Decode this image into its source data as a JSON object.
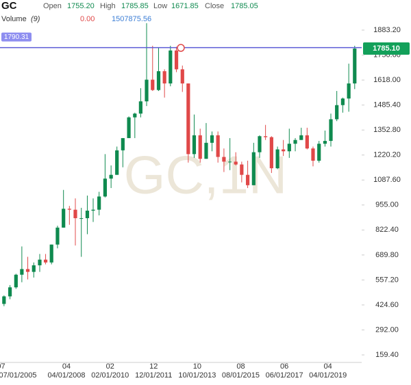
{
  "chart_data": {
    "type": "candlestick",
    "header": {
      "symbol": "GC",
      "open_label": "Open",
      "open": "1755.20",
      "high_label": "High",
      "high": "1785.85",
      "low_label": "Low",
      "low": "1671.85",
      "close_label": "Close",
      "close": "1785.05",
      "volume_label": "Volume",
      "volume_period": "(9)",
      "volume_a": "0.00",
      "volume_b": "1507875.56"
    },
    "watermark": "GC,1N",
    "up_color": "#0f8a4f",
    "down_color": "#e04848",
    "x": [
      "2005-07-01",
      "2005-10-01",
      "2006-01-01",
      "2006-04-01",
      "2006-07-01",
      "2006-10-01",
      "2007-01-01",
      "2007-04-01",
      "2007-07-01",
      "2007-10-01",
      "2008-01-01",
      "2008-04-01",
      "2008-07-01",
      "2008-10-01",
      "2009-01-01",
      "2009-04-01",
      "2009-07-01",
      "2009-10-01",
      "2010-01-01",
      "2010-04-01",
      "2010-07-01",
      "2010-10-01",
      "2011-01-01",
      "2011-04-01",
      "2011-07-01",
      "2011-10-01",
      "2012-01-01",
      "2012-04-01",
      "2012-07-01",
      "2012-10-01",
      "2013-01-01",
      "2013-04-01",
      "2013-07-01",
      "2013-10-01",
      "2014-01-01",
      "2014-04-01",
      "2014-07-01",
      "2014-10-01",
      "2015-01-01",
      "2015-04-01",
      "2015-07-01",
      "2015-10-01",
      "2016-01-01",
      "2016-04-01",
      "2016-07-01",
      "2016-10-01",
      "2017-01-01",
      "2017-04-01",
      "2017-07-01",
      "2017-10-01",
      "2018-01-01",
      "2018-04-01",
      "2018-07-01",
      "2018-10-01",
      "2019-01-01",
      "2019-04-01",
      "2019-07-01",
      "2019-10-01",
      "2020-01-01",
      "2020-04-01"
    ],
    "open": [
      430,
      470,
      518,
      585,
      615,
      600,
      635,
      665,
      650,
      745,
      835,
      935,
      930,
      885,
      885,
      925,
      930,
      1000,
      1095,
      1115,
      1245,
      1310,
      1420,
      1440,
      1505,
      1620,
      1565,
      1665,
      1600,
      1775,
      1675,
      1600,
      1225,
      1325,
      1200,
      1285,
      1325,
      1210,
      1185,
      1185,
      1170,
      1115,
      1060,
      1235,
      1320,
      1315,
      1150,
      1250,
      1240,
      1280,
      1300,
      1325,
      1255,
      1190,
      1280,
      1295,
      1410,
      1485,
      1520,
      1600
    ],
    "high": [
      475,
      530,
      590,
      735,
      680,
      650,
      695,
      695,
      745,
      845,
      1035,
      950,
      990,
      940,
      1005,
      990,
      1025,
      1225,
      1165,
      1265,
      1310,
      1425,
      1445,
      1575,
      1920,
      1800,
      1790,
      1675,
      1800,
      1795,
      1695,
      1600,
      1435,
      1360,
      1390,
      1345,
      1345,
      1255,
      1310,
      1235,
      1185,
      1190,
      1285,
      1325,
      1380,
      1320,
      1265,
      1300,
      1360,
      1310,
      1365,
      1365,
      1265,
      1295,
      1350,
      1440,
      1560,
      1525,
      1705,
      1800
    ],
    "low": [
      418,
      455,
      510,
      545,
      560,
      570,
      600,
      640,
      640,
      725,
      835,
      850,
      740,
      680,
      800,
      865,
      900,
      995,
      1045,
      1115,
      1155,
      1310,
      1310,
      1420,
      1480,
      1560,
      1560,
      1525,
      1585,
      1660,
      1555,
      1180,
      1205,
      1180,
      1200,
      1240,
      1180,
      1130,
      1140,
      1165,
      1075,
      1045,
      1060,
      1205,
      1300,
      1125,
      1145,
      1215,
      1205,
      1240,
      1300,
      1250,
      1160,
      1180,
      1265,
      1265,
      1400,
      1445,
      1450,
      1570
    ],
    "close": [
      470,
      518,
      585,
      615,
      600,
      635,
      665,
      650,
      745,
      835,
      935,
      930,
      885,
      885,
      925,
      930,
      1000,
      1095,
      1115,
      1245,
      1310,
      1420,
      1440,
      1505,
      1620,
      1565,
      1665,
      1600,
      1775,
      1675,
      1600,
      1225,
      1325,
      1200,
      1285,
      1325,
      1210,
      1185,
      1185,
      1170,
      1115,
      1060,
      1235,
      1320,
      1315,
      1150,
      1250,
      1240,
      1280,
      1300,
      1325,
      1255,
      1190,
      1280,
      1295,
      1410,
      1485,
      1520,
      1600,
      1785
    ],
    "ylim": [
      119.5,
      1934
    ],
    "yticks": [
      {
        "value": 159.4,
        "label": "159.40"
      },
      {
        "value": 292,
        "label": "292.00"
      },
      {
        "value": 424.6,
        "label": "424.60"
      },
      {
        "value": 557.2,
        "label": "557.20"
      },
      {
        "value": 689.8,
        "label": "689.80"
      },
      {
        "value": 822.4,
        "label": "822.40"
      },
      {
        "value": 955,
        "label": "955.00"
      },
      {
        "value": 1087.6,
        "label": "1087.60"
      },
      {
        "value": 1220.2,
        "label": "1220.20"
      },
      {
        "value": 1352.8,
        "label": "1352.80"
      },
      {
        "value": 1485.4,
        "label": "1485.40"
      },
      {
        "value": 1618,
        "label": "1618.00"
      },
      {
        "value": 1750.6,
        "label": "1750.60"
      },
      {
        "value": 1883.2,
        "label": "1883.20"
      }
    ],
    "xlim": [
      "2005-06-15",
      "2020-09-01"
    ],
    "xticks": [
      {
        "value": "2005-07-01",
        "label": "07"
      },
      {
        "value": "2008-04-01",
        "label": "04"
      },
      {
        "value": "2010-02-01",
        "label": "02"
      },
      {
        "value": "2011-12-01",
        "label": "12"
      },
      {
        "value": "2013-10-01",
        "label": "10"
      },
      {
        "value": "2015-08-01",
        "label": "08"
      },
      {
        "value": "2017-06-01",
        "label": "06"
      },
      {
        "value": "2019-04-01",
        "label": "04"
      }
    ],
    "x_date_labels": [
      "07/01/2005",
      "04/01/2008",
      "02/01/2010",
      "12/01/2011",
      "10/01/2013",
      "08/01/2015",
      "06/01/2017",
      "04/01/2019"
    ],
    "hline": {
      "value": 1790.31,
      "label": "1790.31",
      "color": "#5a5ad6"
    },
    "last_price": {
      "value": 1785.1,
      "label": "1785.10",
      "color": "#13a05a"
    }
  }
}
